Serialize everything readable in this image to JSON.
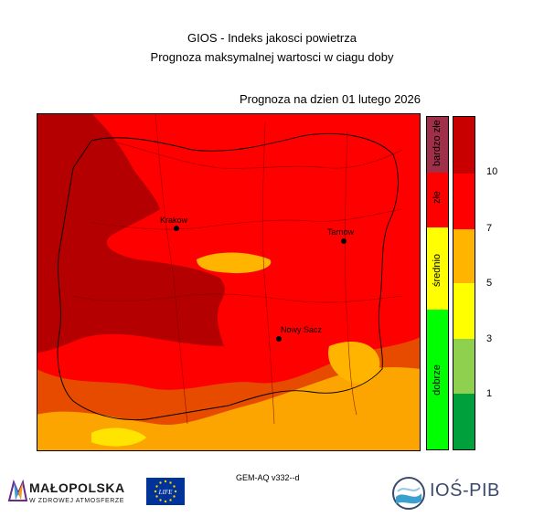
{
  "header": {
    "title_line1": "GIOS - Indeks jakosci powietrza",
    "title_line2": "Prognoza maksymalnej wartosci w ciagu doby",
    "date_label": "Prognoza na dzien  01 lutego 2026"
  },
  "map": {
    "cities": [
      {
        "name": "Krakow"
      },
      {
        "name": "Tarnow"
      },
      {
        "name": "Nowy Sacz"
      }
    ],
    "colors": {
      "dark_red": "#b40000",
      "red": "#ff0000",
      "orange_red": "#e64b00",
      "orange": "#ffb400",
      "yellow": "#ffff00"
    }
  },
  "category_legend": {
    "items": [
      {
        "label": "bardzo złe",
        "color": "#a0304a"
      },
      {
        "label": "złe",
        "color": "#ff0000"
      },
      {
        "label": "średnio",
        "color": "#ffff00"
      },
      {
        "label": "dobrze",
        "color": "#00ff00"
      }
    ]
  },
  "scale_legend": {
    "colors": [
      "#c80000",
      "#ff0000",
      "#ffb400",
      "#ffff00",
      "#8fd14f",
      "#00a03c"
    ],
    "ticks": [
      "10",
      "7",
      "5",
      "3",
      "1"
    ]
  },
  "footer": {
    "model": "GEM-AQ v332--d",
    "malopolska_title": "MAŁOPOLSKA",
    "malopolska_sub": "W ZDROWEJ ATMOSFERZE",
    "eu_text": "LIFE",
    "ios_text": "IOŚ-PIB"
  }
}
